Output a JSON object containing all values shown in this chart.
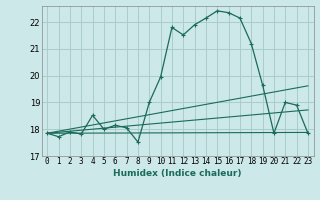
{
  "xlabel": "Humidex (Indice chaleur)",
  "bg_color": "#cce8e8",
  "grid_color": "#aacccc",
  "line_color": "#1a6b5a",
  "xlim": [
    -0.5,
    23.5
  ],
  "ylim": [
    17.0,
    22.6
  ],
  "yticks": [
    17,
    18,
    19,
    20,
    21,
    22
  ],
  "xticks": [
    0,
    1,
    2,
    3,
    4,
    5,
    6,
    7,
    8,
    9,
    10,
    11,
    12,
    13,
    14,
    15,
    16,
    17,
    18,
    19,
    20,
    21,
    22,
    23
  ],
  "curve1_x": [
    0,
    1,
    2,
    3,
    4,
    5,
    6,
    7,
    8,
    9,
    10,
    11,
    12,
    13,
    14,
    15,
    16,
    17,
    18,
    19,
    20,
    21,
    22,
    23
  ],
  "curve1_y": [
    17.85,
    17.72,
    17.9,
    17.82,
    18.52,
    18.0,
    18.15,
    18.05,
    17.52,
    19.0,
    19.95,
    21.8,
    21.52,
    21.9,
    22.15,
    22.42,
    22.35,
    22.15,
    21.2,
    19.65,
    17.85,
    19.0,
    18.9,
    17.85
  ],
  "curve2_x": [
    0,
    23
  ],
  "curve2_y": [
    17.85,
    17.88
  ],
  "curve3_x": [
    0,
    23
  ],
  "curve3_y": [
    17.85,
    19.62
  ],
  "curve4_x": [
    0,
    23
  ],
  "curve4_y": [
    17.85,
    18.72
  ]
}
